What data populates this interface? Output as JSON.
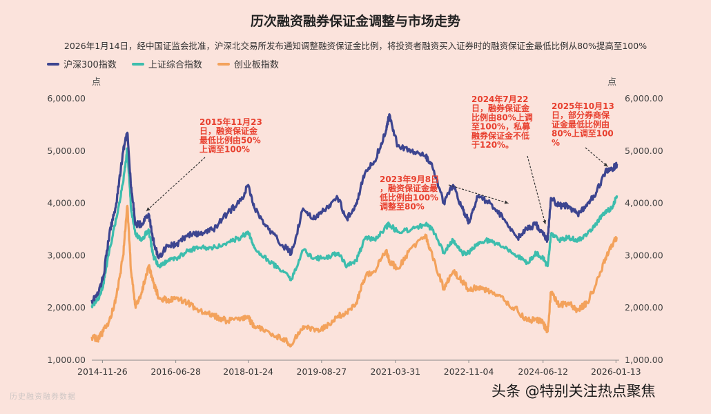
{
  "chart_data": {
    "type": "line",
    "title": "历次融资融券保证金调整与市场走势",
    "subtitle": "2026年1月14日，经中国证监会批准，沪深北交易所发布通知调整融资保证金比例，将投资者融资买入证券时的融资保证金最低比例从80%提高至100%",
    "left_unit": "点",
    "right_unit": "点",
    "ylim": [
      1000,
      6000
    ],
    "yticks": [
      "1,000.00",
      "2,000.00",
      "3,000.00",
      "4,000.00",
      "5,000.00",
      "6,000.00"
    ],
    "ytick_values": [
      1000,
      2000,
      3000,
      4000,
      5000,
      6000
    ],
    "xlim": [
      2014.67,
      2026.1
    ],
    "xticks": [
      "2014-11-26",
      "2016-06-28",
      "2018-01-24",
      "2019-08-27",
      "2021-03-31",
      "2022-11-04",
      "2024-06-12",
      "2026-01-13"
    ],
    "xtick_values": [
      2014.9,
      2016.49,
      2018.06,
      2019.65,
      2021.25,
      2022.84,
      2024.45,
      2026.03
    ],
    "series": [
      {
        "name": "沪深300指数",
        "color": "#3d4590",
        "points": [
          [
            2014.67,
            2150
          ],
          [
            2014.8,
            2250
          ],
          [
            2014.92,
            2600
          ],
          [
            2015.05,
            3400
          ],
          [
            2015.2,
            4000
          ],
          [
            2015.35,
            5000
          ],
          [
            2015.44,
            5350
          ],
          [
            2015.52,
            4300
          ],
          [
            2015.62,
            3600
          ],
          [
            2015.75,
            3600
          ],
          [
            2015.9,
            3800
          ],
          [
            2016.0,
            3300
          ],
          [
            2016.12,
            2950
          ],
          [
            2016.3,
            3200
          ],
          [
            2016.5,
            3200
          ],
          [
            2016.75,
            3400
          ],
          [
            2017.0,
            3400
          ],
          [
            2017.3,
            3500
          ],
          [
            2017.6,
            3800
          ],
          [
            2017.9,
            4050
          ],
          [
            2018.06,
            4350
          ],
          [
            2018.2,
            3900
          ],
          [
            2018.5,
            3500
          ],
          [
            2018.8,
            3200
          ],
          [
            2019.0,
            3050
          ],
          [
            2019.25,
            3900
          ],
          [
            2019.5,
            3700
          ],
          [
            2019.75,
            3900
          ],
          [
            2020.0,
            4100
          ],
          [
            2020.2,
            3700
          ],
          [
            2020.4,
            4000
          ],
          [
            2020.6,
            4600
          ],
          [
            2020.8,
            4800
          ],
          [
            2021.05,
            5400
          ],
          [
            2021.12,
            5700
          ],
          [
            2021.3,
            5100
          ],
          [
            2021.6,
            5000
          ],
          [
            2021.9,
            4900
          ],
          [
            2022.05,
            4700
          ],
          [
            2022.3,
            4000
          ],
          [
            2022.5,
            4350
          ],
          [
            2022.7,
            3900
          ],
          [
            2022.84,
            3650
          ],
          [
            2023.05,
            4150
          ],
          [
            2023.3,
            4000
          ],
          [
            2023.6,
            3700
          ],
          [
            2023.9,
            3350
          ],
          [
            2024.1,
            3500
          ],
          [
            2024.3,
            3600
          ],
          [
            2024.45,
            3400
          ],
          [
            2024.55,
            3300
          ],
          [
            2024.62,
            4100
          ],
          [
            2024.8,
            3950
          ],
          [
            2025.0,
            3950
          ],
          [
            2025.2,
            3800
          ],
          [
            2025.4,
            3950
          ],
          [
            2025.6,
            4200
          ],
          [
            2025.8,
            4600
          ],
          [
            2025.95,
            4650
          ],
          [
            2026.05,
            4750
          ]
        ]
      },
      {
        "name": "上证综合指数",
        "color": "#3dbdad",
        "points": [
          [
            2014.67,
            2050
          ],
          [
            2014.8,
            2150
          ],
          [
            2014.92,
            2450
          ],
          [
            2015.05,
            3100
          ],
          [
            2015.2,
            3700
          ],
          [
            2015.35,
            4400
          ],
          [
            2015.44,
            5050
          ],
          [
            2015.52,
            3900
          ],
          [
            2015.62,
            3400
          ],
          [
            2015.75,
            3300
          ],
          [
            2015.9,
            3500
          ],
          [
            2016.0,
            3000
          ],
          [
            2016.12,
            2800
          ],
          [
            2016.3,
            2900
          ],
          [
            2016.5,
            2950
          ],
          [
            2016.75,
            3100
          ],
          [
            2017.0,
            3150
          ],
          [
            2017.3,
            3150
          ],
          [
            2017.6,
            3250
          ],
          [
            2017.9,
            3350
          ],
          [
            2018.06,
            3450
          ],
          [
            2018.2,
            3150
          ],
          [
            2018.5,
            2900
          ],
          [
            2018.8,
            2700
          ],
          [
            2019.0,
            2550
          ],
          [
            2019.25,
            3100
          ],
          [
            2019.5,
            2950
          ],
          [
            2019.75,
            2950
          ],
          [
            2020.0,
            3050
          ],
          [
            2020.2,
            2800
          ],
          [
            2020.4,
            2900
          ],
          [
            2020.6,
            3350
          ],
          [
            2020.8,
            3300
          ],
          [
            2021.05,
            3550
          ],
          [
            2021.12,
            3600
          ],
          [
            2021.3,
            3450
          ],
          [
            2021.6,
            3500
          ],
          [
            2021.9,
            3600
          ],
          [
            2022.05,
            3500
          ],
          [
            2022.3,
            3050
          ],
          [
            2022.5,
            3300
          ],
          [
            2022.7,
            3050
          ],
          [
            2022.84,
            3050
          ],
          [
            2023.05,
            3250
          ],
          [
            2023.3,
            3300
          ],
          [
            2023.6,
            3150
          ],
          [
            2023.9,
            3000
          ],
          [
            2024.1,
            2850
          ],
          [
            2024.3,
            3050
          ],
          [
            2024.45,
            2950
          ],
          [
            2024.55,
            2800
          ],
          [
            2024.62,
            3400
          ],
          [
            2024.8,
            3300
          ],
          [
            2025.0,
            3350
          ],
          [
            2025.2,
            3300
          ],
          [
            2025.4,
            3400
          ],
          [
            2025.6,
            3600
          ],
          [
            2025.8,
            3850
          ],
          [
            2025.95,
            3900
          ],
          [
            2026.05,
            4150
          ]
        ]
      },
      {
        "name": "创业板指数",
        "color": "#f3a25c",
        "points": [
          [
            2014.67,
            1450
          ],
          [
            2014.8,
            1400
          ],
          [
            2014.92,
            1550
          ],
          [
            2015.05,
            1750
          ],
          [
            2015.2,
            2200
          ],
          [
            2015.35,
            3000
          ],
          [
            2015.44,
            3950
          ],
          [
            2015.52,
            2700
          ],
          [
            2015.62,
            2000
          ],
          [
            2015.75,
            2300
          ],
          [
            2015.9,
            2800
          ],
          [
            2016.0,
            2500
          ],
          [
            2016.12,
            2200
          ],
          [
            2016.3,
            2150
          ],
          [
            2016.5,
            2200
          ],
          [
            2016.75,
            2100
          ],
          [
            2017.0,
            1950
          ],
          [
            2017.3,
            1850
          ],
          [
            2017.6,
            1750
          ],
          [
            2017.9,
            1800
          ],
          [
            2018.06,
            1800
          ],
          [
            2018.2,
            1650
          ],
          [
            2018.5,
            1550
          ],
          [
            2018.8,
            1400
          ],
          [
            2019.0,
            1300
          ],
          [
            2019.25,
            1650
          ],
          [
            2019.5,
            1550
          ],
          [
            2019.75,
            1650
          ],
          [
            2020.0,
            1850
          ],
          [
            2020.2,
            1900
          ],
          [
            2020.4,
            2100
          ],
          [
            2020.6,
            2600
          ],
          [
            2020.8,
            2700
          ],
          [
            2021.05,
            3100
          ],
          [
            2021.12,
            2900
          ],
          [
            2021.3,
            2750
          ],
          [
            2021.6,
            3150
          ],
          [
            2021.9,
            3400
          ],
          [
            2022.05,
            3000
          ],
          [
            2022.3,
            2350
          ],
          [
            2022.5,
            2700
          ],
          [
            2022.7,
            2500
          ],
          [
            2022.84,
            2350
          ],
          [
            2023.05,
            2400
          ],
          [
            2023.3,
            2300
          ],
          [
            2023.6,
            2150
          ],
          [
            2023.9,
            1950
          ],
          [
            2024.1,
            1750
          ],
          [
            2024.3,
            1800
          ],
          [
            2024.45,
            1700
          ],
          [
            2024.55,
            1550
          ],
          [
            2024.62,
            2300
          ],
          [
            2024.8,
            2050
          ],
          [
            2025.0,
            2100
          ],
          [
            2025.2,
            1950
          ],
          [
            2025.4,
            2100
          ],
          [
            2025.6,
            2450
          ],
          [
            2025.8,
            2950
          ],
          [
            2025.95,
            3200
          ],
          [
            2026.05,
            3350
          ]
        ]
      }
    ],
    "annotations": [
      {
        "id": "ann-2015",
        "lines": [
          "2015年11月23",
          "日，融资保证金",
          "最低比例由50%",
          "上调至100%"
        ],
        "target": [
          2015.85,
          3850
        ]
      },
      {
        "id": "ann-2023",
        "lines": [
          "2023年9月8日",
          "，融资保证金最",
          "低比例由100%",
          "调整至80%"
        ],
        "target": [
          2023.7,
          4000
        ]
      },
      {
        "id": "ann-2024",
        "lines": [
          "2024年7月22",
          "日，融券保证金",
          "比例由80%上调",
          "至100%，私募",
          "融券保证金不低",
          "于120%。"
        ],
        "target": [
          2024.5,
          3600
        ]
      },
      {
        "id": "ann-2025",
        "lines": [
          "2025年10月13",
          "日，部分券商保",
          "证金最低比例由",
          "80%上调至100",
          "%"
        ],
        "target": [
          2025.85,
          4700
        ]
      }
    ]
  },
  "watermark": "头条 @特别关注热点聚焦",
  "source_text": "历史融资融券数据"
}
